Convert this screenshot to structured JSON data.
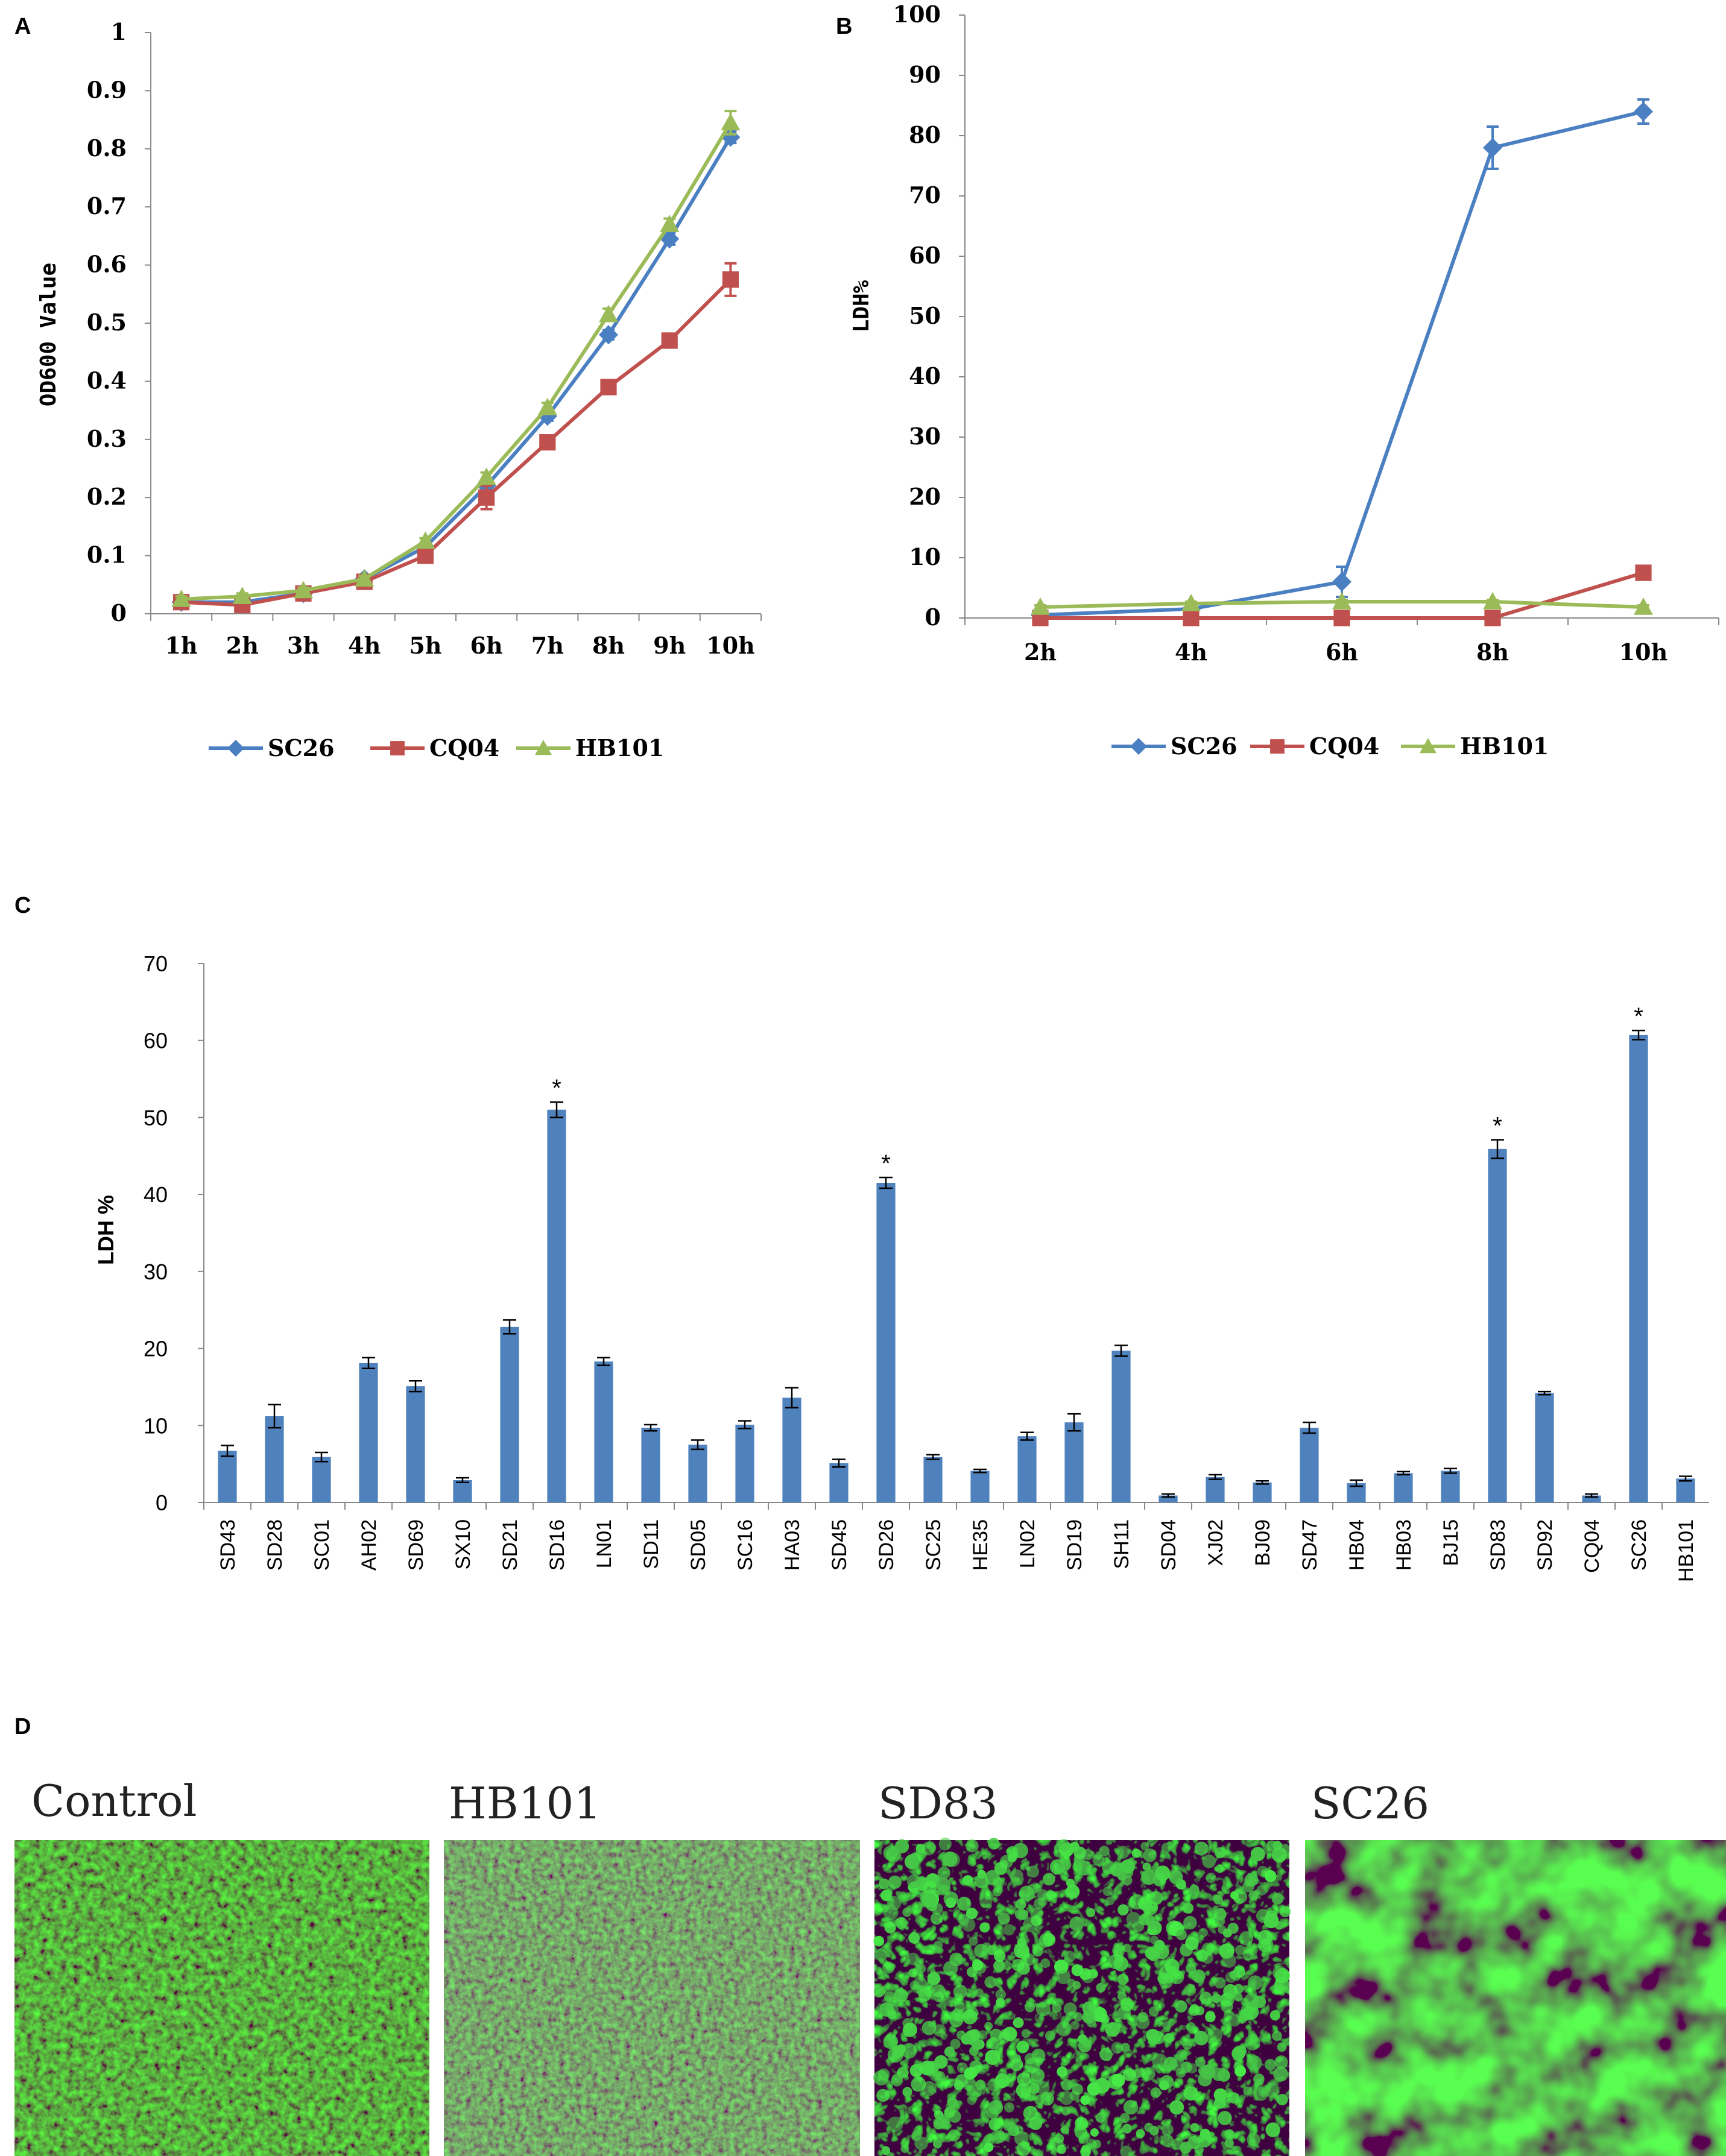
{
  "panels": {
    "a": "A",
    "b": "B",
    "c": "C",
    "d": "D"
  },
  "colors": {
    "sc26": "#4a7fc1",
    "cq04": "#c0504d",
    "hb101": "#9bbb59",
    "bar": "#4f81bd",
    "err": "#000000"
  },
  "chart_data": [
    {
      "id": "A",
      "type": "line",
      "title": "",
      "xlabel": "",
      "ylabel": "OD600 Value",
      "categories": [
        "1h",
        "2h",
        "3h",
        "4h",
        "5h",
        "6h",
        "7h",
        "8h",
        "9h",
        "10h"
      ],
      "ylim": [
        0,
        1
      ],
      "yticks": [
        "0",
        "0.1",
        "0.2",
        "0.3",
        "0.4",
        "0.5",
        "0.6",
        "0.7",
        "0.8",
        "0.9",
        "1"
      ],
      "series": [
        {
          "name": "SC26",
          "marker": "diamond",
          "values": [
            0.02,
            0.02,
            0.035,
            0.06,
            0.115,
            0.22,
            0.34,
            0.48,
            0.645,
            0.82
          ],
          "errors": [
            0.005,
            0.005,
            0.005,
            0.005,
            0.005,
            0.008,
            0.008,
            0.008,
            0.01,
            0.01
          ]
        },
        {
          "name": "CQ04",
          "marker": "square",
          "values": [
            0.02,
            0.015,
            0.035,
            0.055,
            0.1,
            0.2,
            0.295,
            0.39,
            0.47,
            0.575
          ],
          "errors": [
            0.005,
            0.005,
            0.005,
            0.005,
            0.005,
            0.02,
            0.008,
            0.008,
            0.008,
            0.028
          ]
        },
        {
          "name": "HB101",
          "marker": "triangle",
          "values": [
            0.025,
            0.03,
            0.04,
            0.06,
            0.125,
            0.235,
            0.355,
            0.515,
            0.67,
            0.845
          ],
          "errors": [
            0.005,
            0.005,
            0.005,
            0.005,
            0.005,
            0.008,
            0.008,
            0.01,
            0.01,
            0.02
          ]
        }
      ]
    },
    {
      "id": "B",
      "type": "line",
      "title": "",
      "xlabel": "",
      "ylabel": "LDH%",
      "categories": [
        "2h",
        "4h",
        "6h",
        "8h",
        "10h"
      ],
      "ylim": [
        0,
        100
      ],
      "yticks": [
        "0",
        "10",
        "20",
        "30",
        "40",
        "50",
        "60",
        "70",
        "80",
        "90",
        "100"
      ],
      "series": [
        {
          "name": "SC26",
          "marker": "diamond",
          "values": [
            0.5,
            1.5,
            6,
            78,
            84
          ],
          "errors": [
            0.5,
            1,
            2.5,
            3.5,
            2
          ]
        },
        {
          "name": "CQ04",
          "marker": "square",
          "values": [
            0,
            0,
            0,
            0,
            7.5
          ],
          "errors": [
            0,
            0,
            0,
            0,
            0.8
          ]
        },
        {
          "name": "HB101",
          "marker": "triangle",
          "values": [
            1.8,
            2.4,
            2.7,
            2.7,
            1.8
          ],
          "errors": [
            0.3,
            0.3,
            0.3,
            0.3,
            0.3
          ]
        }
      ]
    },
    {
      "id": "C",
      "type": "bar",
      "title": "",
      "xlabel": "",
      "ylabel": "LDH %",
      "ylim": [
        0,
        70
      ],
      "yticks": [
        "0",
        "10",
        "20",
        "30",
        "40",
        "50",
        "60",
        "70"
      ],
      "categories": [
        "SD43",
        "SD28",
        "SC01",
        "AH02",
        "SD69",
        "SX10",
        "SD21",
        "SD16",
        "LN01",
        "SD11",
        "SD05",
        "SC16",
        "HA03",
        "SD45",
        "SD26",
        "SC25",
        "HE35",
        "LN02",
        "SD19",
        "SH11",
        "SD04",
        "XJ02",
        "BJ09",
        "SD47",
        "HB04",
        "HB03",
        "BJ15",
        "SD83",
        "SD92",
        "CQ04",
        "SC26",
        "HB101"
      ],
      "values": [
        6.7,
        11.2,
        5.9,
        18.1,
        15.1,
        2.9,
        22.8,
        51,
        18.3,
        9.7,
        7.5,
        10.1,
        13.6,
        5.1,
        41.5,
        5.9,
        4.1,
        8.6,
        10.4,
        19.7,
        0.9,
        3.3,
        2.6,
        9.7,
        2.5,
        3.8,
        4.1,
        45.9,
        14.2,
        0.9,
        60.7,
        3.1
      ],
      "errors": [
        0.7,
        1.5,
        0.6,
        0.7,
        0.7,
        0.3,
        0.9,
        1,
        0.5,
        0.4,
        0.6,
        0.5,
        1.3,
        0.5,
        0.7,
        0.3,
        0.2,
        0.5,
        1.1,
        0.7,
        0.2,
        0.3,
        0.2,
        0.7,
        0.4,
        0.2,
        0.3,
        1.2,
        0.2,
        0.2,
        0.6,
        0.3
      ],
      "significant": [
        false,
        false,
        false,
        false,
        false,
        false,
        false,
        true,
        false,
        false,
        false,
        false,
        false,
        false,
        true,
        false,
        false,
        false,
        false,
        false,
        false,
        false,
        false,
        false,
        false,
        false,
        false,
        true,
        false,
        false,
        true,
        false
      ],
      "significance_mark": "*"
    }
  ],
  "micrographs": [
    {
      "label": "Control"
    },
    {
      "label": "HB101"
    },
    {
      "label": "SD83"
    },
    {
      "label": "SC26"
    }
  ]
}
